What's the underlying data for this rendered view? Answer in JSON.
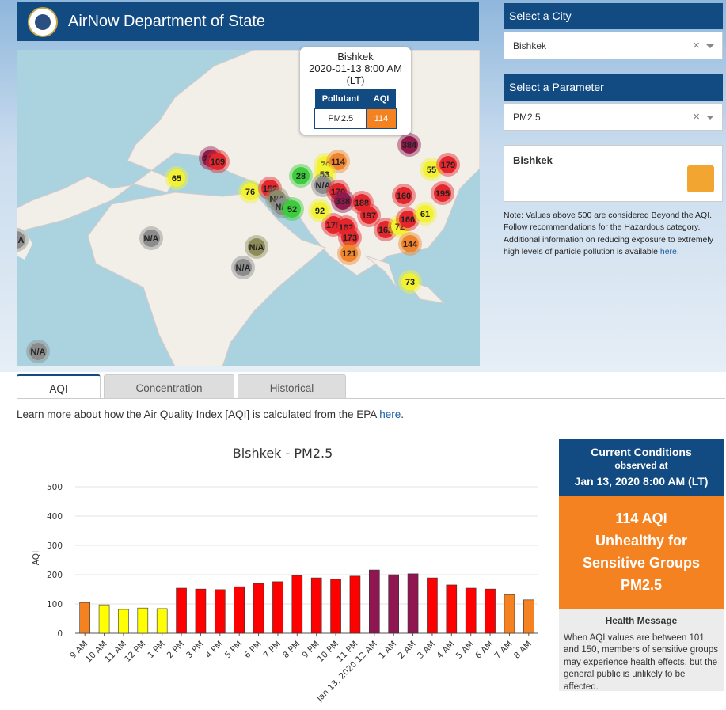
{
  "header": {
    "title": "AirNow Department of State"
  },
  "map": {
    "markers": [
      {
        "label": "65",
        "color": "#f2f233"
      },
      {
        "label": "224",
        "color": "#8f1a4b"
      },
      {
        "label": "109",
        "color": "#e5262c"
      },
      {
        "label": "28",
        "color": "#3ccd3c"
      },
      {
        "label": "70",
        "color": "#f2f233"
      },
      {
        "label": "114",
        "color": "#f0852d"
      },
      {
        "label": "53",
        "color": "#f2f233"
      },
      {
        "label": "N/A",
        "color": "#8c8c8c"
      },
      {
        "label": "170",
        "color": "#e5262c"
      },
      {
        "label": "338",
        "color": "#8f1a4b"
      },
      {
        "label": "188",
        "color": "#e5262c"
      },
      {
        "label": "197",
        "color": "#e5262c"
      },
      {
        "label": "175",
        "color": "#e5262c"
      },
      {
        "label": "182",
        "color": "#e5262c"
      },
      {
        "label": "173",
        "color": "#e5262c"
      },
      {
        "label": "121",
        "color": "#f0852d"
      },
      {
        "label": "162",
        "color": "#e5262c"
      },
      {
        "label": "72",
        "color": "#f2f233"
      },
      {
        "label": "166",
        "color": "#e5262c"
      },
      {
        "label": "144",
        "color": "#f0852d"
      },
      {
        "label": "61",
        "color": "#f2f233"
      },
      {
        "label": "160",
        "color": "#e5262c"
      },
      {
        "label": "195",
        "color": "#e5262c"
      },
      {
        "label": "55",
        "color": "#f2f233"
      },
      {
        "label": "179",
        "color": "#e5262c"
      },
      {
        "label": "384",
        "color": "#8f1a4b"
      },
      {
        "label": "76",
        "color": "#f2f233"
      },
      {
        "label": "152",
        "color": "#e5262c"
      },
      {
        "label": "N/A",
        "color": "#8c8c6a"
      },
      {
        "label": "N/A",
        "color": "#8c8c8c"
      },
      {
        "label": "52",
        "color": "#3ccd3c"
      },
      {
        "label": "92",
        "color": "#f2f233"
      },
      {
        "label": "N/A",
        "color": "#8c8c8c"
      },
      {
        "label": "N/A",
        "color": "#8c8c5a"
      },
      {
        "label": "N/A",
        "color": "#8c8c8c"
      },
      {
        "label": "N/A",
        "color": "#8c8c8c"
      },
      {
        "label": "N/A",
        "color": "#8c8c8c"
      },
      {
        "label": "73",
        "color": "#f2f233"
      }
    ],
    "popup": {
      "city": "Bishkek",
      "time": "2020-01-13 8:00 AM (LT)",
      "head": [
        "Pollutant",
        "AQI"
      ],
      "row": [
        "PM2.5",
        "114"
      ]
    }
  },
  "sidebar": {
    "city_label": "Select a City",
    "city": "Bishkek",
    "param_label": "Select a Parameter",
    "param": "PM2.5",
    "clear": "×",
    "info_title": "Bishkek",
    "note": "Note: Values above 500 are considered Beyond the AQI. Follow recommendations for the Hazardous category. Additional information on reducing exposure to extremely high levels of particle pollution is available ",
    "note_link": "here",
    "note_end": "."
  },
  "tabs": [
    "AQI",
    "Concentration",
    "Historical"
  ],
  "epa": {
    "text": "Learn more about how the Air Quality Index [AQI] is calculated from the EPA ",
    "link": "here",
    "end": "."
  },
  "chart_data": {
    "type": "bar",
    "title": "Bishkek - PM2.5",
    "y_label": "AQI",
    "categories": [
      "9 AM",
      "10 AM",
      "11 AM",
      "12 PM",
      "1 PM",
      "2 PM",
      "3 PM",
      "4 PM",
      "5 PM",
      "6 PM",
      "7 PM",
      "8 PM",
      "9 PM",
      "10 PM",
      "11 PM",
      "Jan 13, 2020 12 AM",
      "1 AM",
      "2 AM",
      "3 AM",
      "4 AM",
      "5 AM",
      "6 AM",
      "7 AM",
      "8 AM"
    ],
    "values": [
      105,
      97,
      81,
      86,
      84,
      154,
      151,
      149,
      159,
      170,
      176,
      197,
      189,
      184,
      195,
      216,
      200,
      203,
      189,
      165,
      154,
      151,
      132,
      114
    ],
    "colors": [
      "#f58220",
      "#ffff00",
      "#ffff00",
      "#ffff00",
      "#ffff00",
      "#ff0000",
      "#ff0000",
      "#ff0000",
      "#ff0000",
      "#ff0000",
      "#ff0000",
      "#ff0000",
      "#ff0000",
      "#ff0000",
      "#ff0000",
      "#8f1650",
      "#8f1650",
      "#8f1650",
      "#ff0000",
      "#ff0000",
      "#ff0000",
      "#ff0000",
      "#f58220",
      "#f58220"
    ],
    "ylim": [
      0,
      500
    ],
    "yticks": [
      0,
      100,
      200,
      300,
      400,
      500
    ],
    "grid": true
  },
  "conditions": {
    "title": "Current Conditions",
    "observed": "observed at",
    "time": "Jan 13, 2020 8:00 AM (LT)",
    "aqi": "114 AQI",
    "category": [
      "Unhealthy for",
      "Sensitive Groups"
    ],
    "pollutant": "PM2.5",
    "health_title": "Health Message",
    "health": "When AQI values are between 101 and 150, members of sensitive groups may experience health effects, but the general public is unlikely to be affected."
  }
}
